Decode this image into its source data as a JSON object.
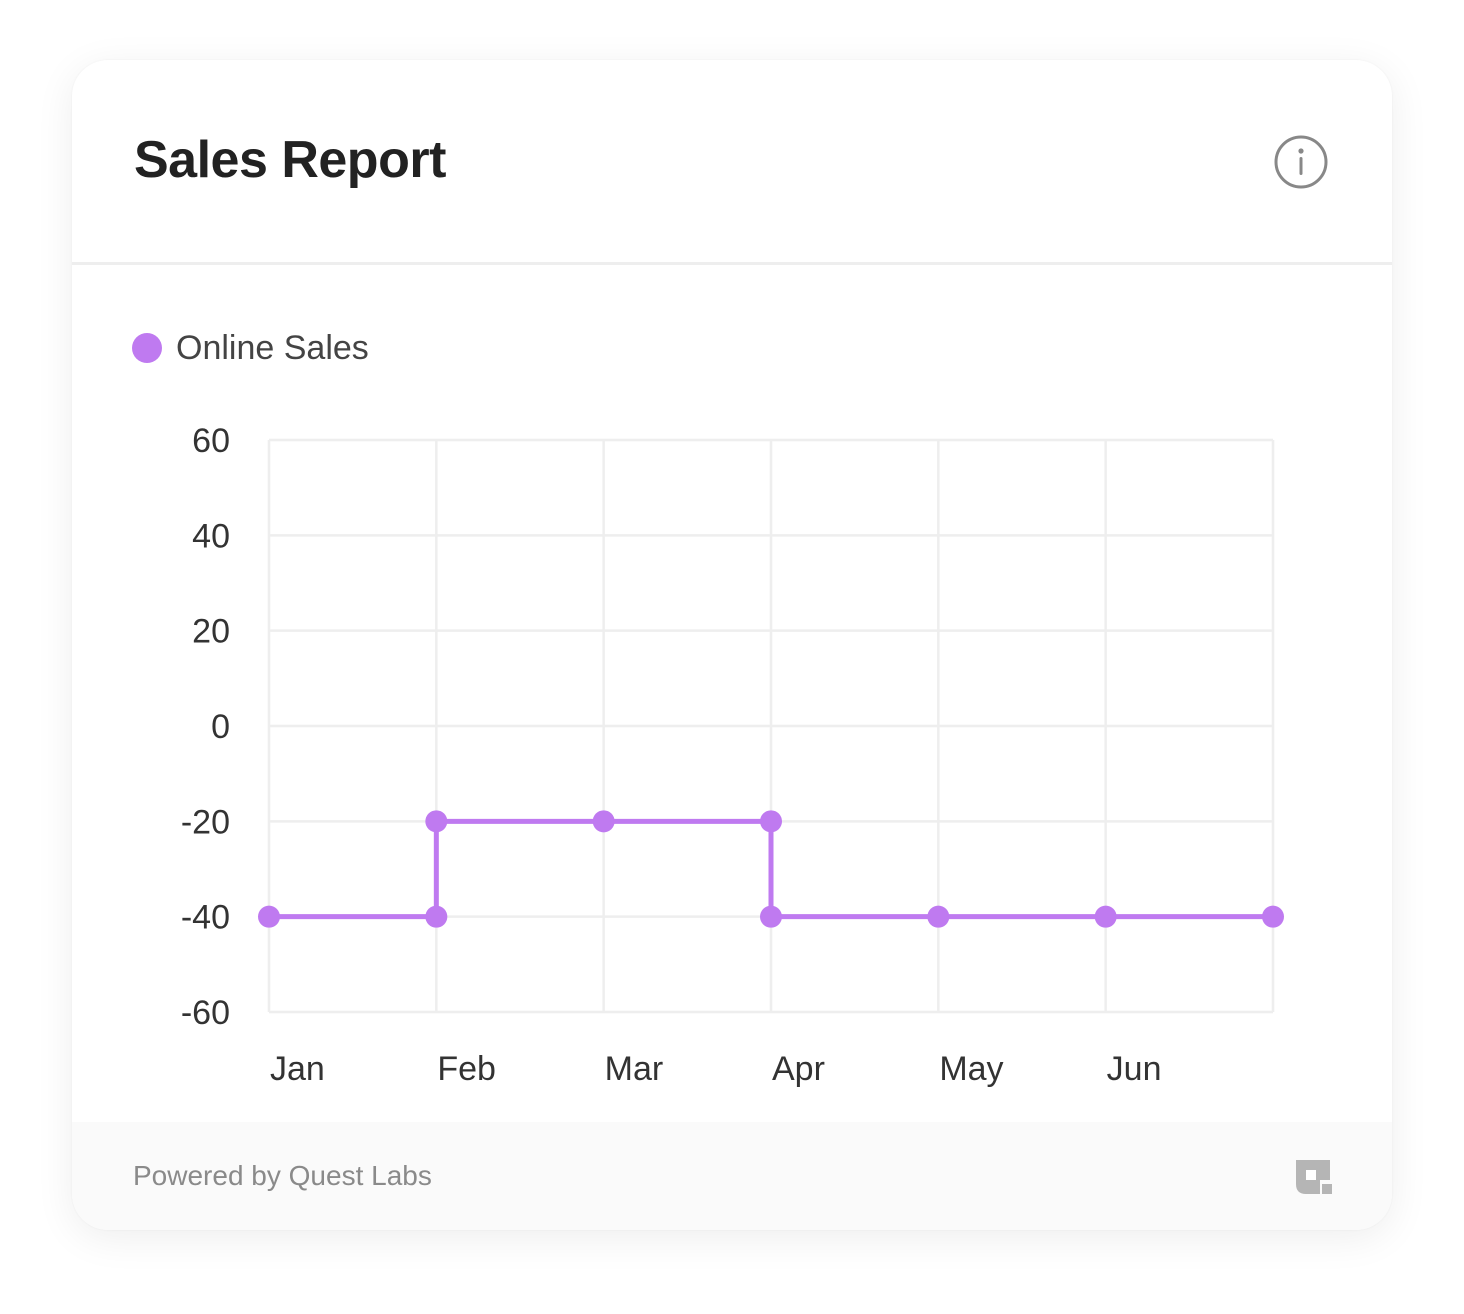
{
  "card": {
    "title": "Sales Report"
  },
  "footer": {
    "powered_by": "Powered by Quest Labs"
  },
  "icons": {
    "info": "info-icon",
    "brand": "quest-labs-logo-icon"
  },
  "colors": {
    "series": "#bf7af0",
    "grid": "#eeeeee",
    "text": "#333333"
  },
  "chart_data": {
    "type": "line",
    "interpolation": "step",
    "categories": [
      "Jan",
      "Feb",
      "Mar",
      "Apr",
      "May",
      "Jun"
    ],
    "yticks": [
      60,
      40,
      20,
      0,
      -20,
      -40,
      -60
    ],
    "ylim": [
      -60,
      60
    ],
    "grid": true,
    "legend_position": "top-left",
    "series": [
      {
        "name": "Online Sales",
        "color": "#bf7af0",
        "points": [
          {
            "x": 0,
            "y": -40
          },
          {
            "x": 1,
            "y": -40
          },
          {
            "x": 1,
            "y": -20
          },
          {
            "x": 2,
            "y": -20
          },
          {
            "x": 3,
            "y": -20
          },
          {
            "x": 3,
            "y": -40
          },
          {
            "x": 4,
            "y": -40
          },
          {
            "x": 5,
            "y": -40
          },
          {
            "x": 6,
            "y": -40
          }
        ]
      }
    ]
  }
}
